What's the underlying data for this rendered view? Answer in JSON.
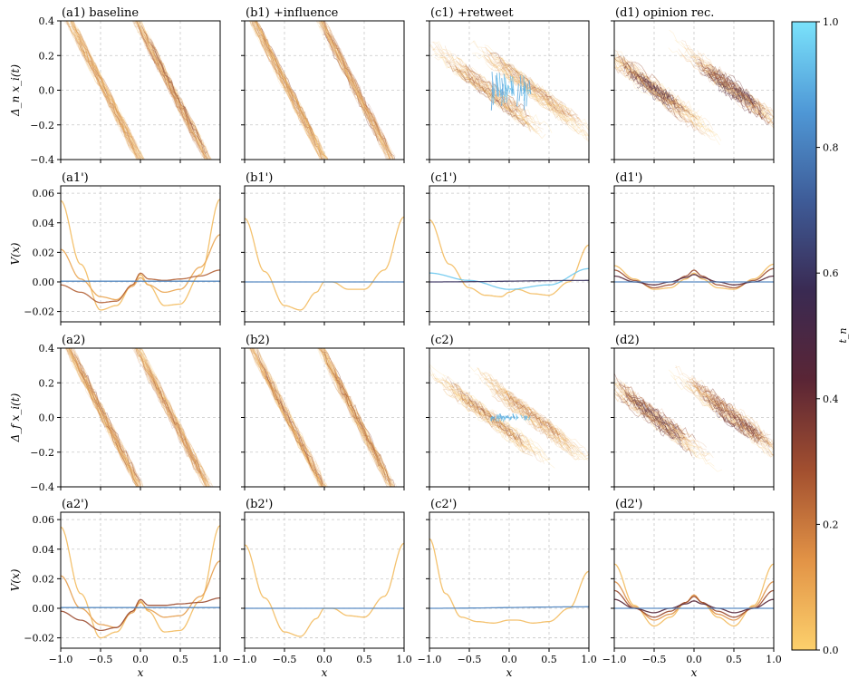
{
  "figure": {
    "colorbar": {
      "label": "t_n",
      "range": [
        0,
        1
      ],
      "ticks": [
        "0.0",
        "0.2",
        "0.4",
        "0.6",
        "0.8",
        "1.0"
      ],
      "colors": [
        "#fcd06c",
        "#e29346",
        "#a24f2f",
        "#5a2535",
        "#3a2a52",
        "#3e5b97",
        "#4f98d6",
        "#7ae2fb"
      ]
    }
  },
  "chart_data": [
    {
      "id": "a1",
      "type": "line",
      "title": "(a1) baseline",
      "ylabel": "Δ_n x_i(t)",
      "xlim": [
        -1,
        1
      ],
      "ylim": [
        -0.4,
        0.4
      ],
      "yticks": [
        "0.4",
        "0.2",
        "0.0",
        "−0.2",
        "−0.4"
      ],
      "pattern": "trajectories",
      "variant": "baseline"
    },
    {
      "id": "b1",
      "type": "line",
      "title": "(b1) +influence",
      "xlim": [
        -1,
        1
      ],
      "ylim": [
        -0.4,
        0.4
      ],
      "pattern": "trajectories",
      "variant": "influence"
    },
    {
      "id": "c1",
      "type": "line",
      "title": "(c1) +retweet",
      "xlim": [
        -1,
        1
      ],
      "ylim": [
        -0.4,
        0.4
      ],
      "pattern": "trajectories",
      "variant": "retweet"
    },
    {
      "id": "d1",
      "type": "line",
      "title": "(d1) opinion rec.",
      "xlim": [
        -1,
        1
      ],
      "ylim": [
        -0.4,
        0.4
      ],
      "pattern": "trajectories",
      "variant": "opinion"
    },
    {
      "id": "a1p",
      "type": "line",
      "title": "(a1')",
      "ylabel": "V(x)",
      "xlim": [
        -1,
        1
      ],
      "ylim": [
        -0.027,
        0.065
      ],
      "yticks": [
        "0.06",
        "0.04",
        "0.02",
        "0.00",
        "−0.02"
      ],
      "pattern": "potential",
      "series": [
        {
          "t": 0.05,
          "x": [
            -1,
            -0.75,
            -0.5,
            -0.3,
            -0.1,
            0,
            0.1,
            0.3,
            0.5,
            0.75,
            1
          ],
          "y": [
            0.055,
            0.012,
            -0.019,
            -0.016,
            -0.002,
            0.005,
            -0.002,
            -0.016,
            -0.015,
            0.005,
            0.056
          ]
        },
        {
          "t": 0.1,
          "x": [
            -1,
            -0.75,
            -0.5,
            -0.3,
            -0.1,
            0,
            0.1,
            0.3,
            0.5,
            0.75,
            1
          ],
          "y": [
            0.022,
            0.002,
            -0.01,
            -0.012,
            -0.003,
            0.003,
            -0.002,
            -0.007,
            -0.005,
            0.01,
            0.032
          ]
        },
        {
          "t": 0.25,
          "x": [
            -1,
            -0.75,
            -0.5,
            -0.3,
            -0.1,
            0,
            0.1,
            0.3,
            0.5,
            0.75,
            1
          ],
          "y": [
            -0.002,
            -0.007,
            -0.014,
            -0.013,
            -0.002,
            0.006,
            0.002,
            0.001,
            0.002,
            0.004,
            0.008
          ]
        },
        {
          "t": 0.8,
          "x": [
            -1,
            1
          ],
          "y": [
            0.0005,
            0.0005
          ]
        }
      ]
    },
    {
      "id": "b1p",
      "type": "line",
      "title": "(b1')",
      "xlim": [
        -1,
        1
      ],
      "ylim": [
        -0.027,
        0.065
      ],
      "pattern": "potential",
      "series": [
        {
          "t": 0.05,
          "x": [
            -1,
            -0.75,
            -0.5,
            -0.3,
            -0.1,
            0,
            0.1,
            0.3,
            0.5,
            0.75,
            1
          ],
          "y": [
            0.043,
            0.007,
            -0.016,
            -0.019,
            -0.007,
            0.0,
            0.0,
            -0.005,
            -0.005,
            0.008,
            0.044
          ]
        },
        {
          "t": 0.8,
          "x": [
            -1,
            1
          ],
          "y": [
            0.0,
            0.0
          ]
        }
      ]
    },
    {
      "id": "c1p",
      "type": "line",
      "title": "(c1')",
      "xlim": [
        -1,
        1
      ],
      "ylim": [
        -0.027,
        0.065
      ],
      "pattern": "potential",
      "series": [
        {
          "t": 0.05,
          "x": [
            -1,
            -0.75,
            -0.5,
            -0.3,
            -0.1,
            0,
            0.1,
            0.3,
            0.5,
            0.75,
            1
          ],
          "y": [
            0.042,
            0.012,
            -0.004,
            -0.009,
            -0.01,
            -0.007,
            -0.005,
            -0.008,
            -0.009,
            0.0,
            0.025
          ]
        },
        {
          "t": 0.95,
          "x": [
            -1,
            -0.5,
            0,
            0.5,
            1
          ],
          "y": [
            0.006,
            0.001,
            -0.005,
            -0.002,
            0.009
          ]
        },
        {
          "t": 0.6,
          "x": [
            -1,
            1
          ],
          "y": [
            0.0,
            0.001
          ]
        }
      ]
    },
    {
      "id": "d1p",
      "type": "line",
      "title": "(d1')",
      "xlim": [
        -1,
        1
      ],
      "ylim": [
        -0.027,
        0.065
      ],
      "pattern": "potential",
      "series": [
        {
          "t": 0.05,
          "x": [
            -1,
            -0.75,
            -0.5,
            -0.3,
            -0.1,
            0,
            0.1,
            0.3,
            0.5,
            0.75,
            1
          ],
          "y": [
            0.011,
            0.002,
            -0.005,
            -0.004,
            0.002,
            0.006,
            0.002,
            -0.004,
            -0.005,
            0.002,
            0.012
          ]
        },
        {
          "t": 0.3,
          "x": [
            -1,
            -0.75,
            -0.5,
            -0.3,
            -0.1,
            0,
            0.1,
            0.3,
            0.5,
            0.75,
            1
          ],
          "y": [
            0.008,
            0.001,
            -0.004,
            -0.002,
            0.004,
            0.008,
            0.004,
            -0.002,
            -0.004,
            0.001,
            0.009
          ]
        },
        {
          "t": 0.45,
          "x": [
            -1,
            -0.75,
            -0.5,
            -0.3,
            -0.1,
            0,
            0.1,
            0.3,
            0.5,
            0.75,
            1
          ],
          "y": [
            0.004,
            0.0,
            -0.002,
            0.0,
            0.003,
            0.005,
            0.003,
            0.0,
            -0.002,
            0.0,
            0.004
          ]
        },
        {
          "t": 0.8,
          "x": [
            -1,
            1
          ],
          "y": [
            0.0,
            0.0
          ]
        }
      ]
    },
    {
      "id": "a2",
      "type": "line",
      "title": "(a2)",
      "ylabel": "Δ_f x_i(t)",
      "xlim": [
        -1,
        1
      ],
      "ylim": [
        -0.4,
        0.4
      ],
      "yticks": [
        "0.4",
        "0.2",
        "0.0",
        "−0.2",
        "−0.4"
      ],
      "pattern": "trajectories",
      "variant": "baseline"
    },
    {
      "id": "b2",
      "type": "line",
      "title": "(b2)",
      "xlim": [
        -1,
        1
      ],
      "ylim": [
        -0.4,
        0.4
      ],
      "pattern": "trajectories",
      "variant": "influence"
    },
    {
      "id": "c2",
      "type": "line",
      "title": "(c2)",
      "xlim": [
        -1,
        1
      ],
      "ylim": [
        -0.4,
        0.4
      ],
      "pattern": "trajectories",
      "variant": "retweet2"
    },
    {
      "id": "d2",
      "type": "line",
      "title": "(d2)",
      "xlim": [
        -1,
        1
      ],
      "ylim": [
        -0.4,
        0.4
      ],
      "pattern": "trajectories",
      "variant": "opinion"
    },
    {
      "id": "a2p",
      "type": "line",
      "title": "(a2')",
      "ylabel": "V(x)",
      "xlabel": "x",
      "xlim": [
        -1,
        1
      ],
      "ylim": [
        -0.027,
        0.065
      ],
      "yticks": [
        "0.06",
        "0.04",
        "0.02",
        "0.00",
        "−0.02"
      ],
      "xticks": [
        "−1.0",
        "−0.5",
        "0.0",
        "0.5",
        "1.0"
      ],
      "pattern": "potential",
      "series": [
        {
          "t": 0.05,
          "x": [
            -1,
            -0.75,
            -0.5,
            -0.3,
            -0.1,
            0,
            0.1,
            0.3,
            0.5,
            0.75,
            1
          ],
          "y": [
            0.055,
            0.01,
            -0.02,
            -0.016,
            -0.002,
            0.005,
            -0.002,
            -0.016,
            -0.015,
            0.005,
            0.056
          ]
        },
        {
          "t": 0.12,
          "x": [
            -1,
            -0.75,
            -0.5,
            -0.3,
            -0.1,
            0,
            0.1,
            0.3,
            0.5,
            0.75,
            1
          ],
          "y": [
            0.022,
            0.0,
            -0.011,
            -0.013,
            -0.003,
            0.004,
            -0.001,
            -0.006,
            -0.005,
            0.008,
            0.032
          ]
        },
        {
          "t": 0.3,
          "x": [
            -1,
            -0.75,
            -0.5,
            -0.3,
            -0.1,
            0,
            0.1,
            0.3,
            0.5,
            0.75,
            1
          ],
          "y": [
            -0.002,
            -0.008,
            -0.015,
            -0.013,
            -0.002,
            0.006,
            0.002,
            0.002,
            0.003,
            0.004,
            0.007
          ]
        },
        {
          "t": 0.8,
          "x": [
            -1,
            1
          ],
          "y": [
            0.0005,
            0.0005
          ]
        }
      ]
    },
    {
      "id": "b2p",
      "type": "line",
      "title": "(b2')",
      "xlabel": "x",
      "xlim": [
        -1,
        1
      ],
      "ylim": [
        -0.027,
        0.065
      ],
      "xticks": [
        "−1.0",
        "−0.5",
        "0.0",
        "0.5",
        "1.0"
      ],
      "pattern": "potential",
      "series": [
        {
          "t": 0.05,
          "x": [
            -1,
            -0.75,
            -0.5,
            -0.3,
            -0.1,
            0,
            0.1,
            0.3,
            0.5,
            0.75,
            1
          ],
          "y": [
            0.043,
            0.007,
            -0.016,
            -0.019,
            -0.007,
            0.0,
            0.0,
            -0.005,
            -0.006,
            0.008,
            0.044
          ]
        },
        {
          "t": 0.8,
          "x": [
            -1,
            1
          ],
          "y": [
            0.0,
            0.0
          ]
        }
      ]
    },
    {
      "id": "c2p",
      "type": "line",
      "title": "(c2')",
      "xlabel": "x",
      "xlim": [
        -1,
        1
      ],
      "ylim": [
        -0.027,
        0.065
      ],
      "xticks": [
        "−1.0",
        "−0.5",
        "0.0",
        "0.5",
        "1.0"
      ],
      "pattern": "potential",
      "series": [
        {
          "t": 0.05,
          "x": [
            -1,
            -0.8,
            -0.6,
            -0.4,
            -0.2,
            0,
            0.1,
            0.3,
            0.5,
            0.75,
            1
          ],
          "y": [
            0.047,
            0.01,
            -0.006,
            -0.009,
            -0.01,
            -0.008,
            -0.008,
            -0.01,
            -0.009,
            0.0,
            0.025
          ]
        },
        {
          "t": 0.8,
          "x": [
            -1,
            1
          ],
          "y": [
            0.0,
            0.001
          ]
        }
      ]
    },
    {
      "id": "d2p",
      "type": "line",
      "title": "(d2')",
      "xlabel": "x",
      "xlim": [
        -1,
        1
      ],
      "ylim": [
        -0.027,
        0.065
      ],
      "xticks": [
        "−1.0",
        "−0.5",
        "0.0",
        "0.5",
        "1.0"
      ],
      "pattern": "potential",
      "series": [
        {
          "t": 0.05,
          "x": [
            -1,
            -0.75,
            -0.5,
            -0.3,
            -0.1,
            0,
            0.1,
            0.3,
            0.5,
            0.75,
            1
          ],
          "y": [
            0.03,
            0.002,
            -0.012,
            -0.006,
            0.004,
            0.009,
            0.004,
            -0.006,
            -0.012,
            0.002,
            0.03
          ]
        },
        {
          "t": 0.15,
          "x": [
            -1,
            -0.75,
            -0.5,
            -0.3,
            -0.1,
            0,
            0.1,
            0.3,
            0.5,
            0.75,
            1
          ],
          "y": [
            0.018,
            0.001,
            -0.008,
            -0.004,
            0.004,
            0.009,
            0.004,
            -0.004,
            -0.008,
            0.001,
            0.018
          ]
        },
        {
          "t": 0.3,
          "x": [
            -1,
            -0.75,
            -0.5,
            -0.3,
            -0.1,
            0,
            0.1,
            0.3,
            0.5,
            0.75,
            1
          ],
          "y": [
            0.012,
            0.0,
            -0.006,
            -0.002,
            0.004,
            0.008,
            0.004,
            -0.002,
            -0.006,
            0.0,
            0.012
          ]
        },
        {
          "t": 0.45,
          "x": [
            -1,
            -0.75,
            -0.5,
            -0.3,
            -0.1,
            0,
            0.1,
            0.3,
            0.5,
            0.75,
            1
          ],
          "y": [
            0.006,
            0.0,
            -0.003,
            0.0,
            0.003,
            0.005,
            0.003,
            0.0,
            -0.003,
            0.0,
            0.006
          ]
        },
        {
          "t": 0.8,
          "x": [
            -1,
            1
          ],
          "y": [
            0.0,
            0.0
          ]
        }
      ]
    }
  ]
}
